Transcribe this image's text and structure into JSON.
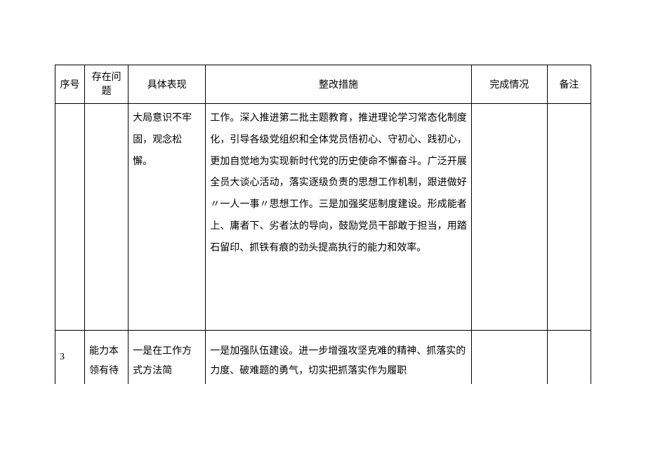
{
  "table": {
    "headers": {
      "seq": "序号",
      "issue": "存在问题",
      "performance": "具体表现",
      "action": "整改措施",
      "status": "完成情况",
      "note": "备注"
    },
    "rows": [
      {
        "seq": "",
        "issue": "",
        "performance": "大局意识不牢固，观念松懈。",
        "action": "工作。深入推进第二批主题教育，推进理论学习常态化制度化，引导各级党组织和全体党员悟初心、守初心、践初心，更加自觉地为实现新时代党的历史使命不懈奋斗。广泛开展全员大谈心活动，落实逐级负责的思想工作机制，跟进做好〃一人一事〃思想工作。三是加强奖惩制度建设。形成能者上、庸者下、劣者汰的导向，鼓励党员干部敢于担当，用踏石留印、抓铁有痕的劲头提高执行的能力和效率。",
        "status": "",
        "note": ""
      },
      {
        "seq": "3",
        "issue": "能力本领有待",
        "performance": "一是在工作方式方法简",
        "action": "一是加强队伍建设。进一步增强攻坚克难的精神、抓落实的力度、破难题的勇气，切实把抓落实作为履职",
        "status": "",
        "note": ""
      }
    ]
  }
}
